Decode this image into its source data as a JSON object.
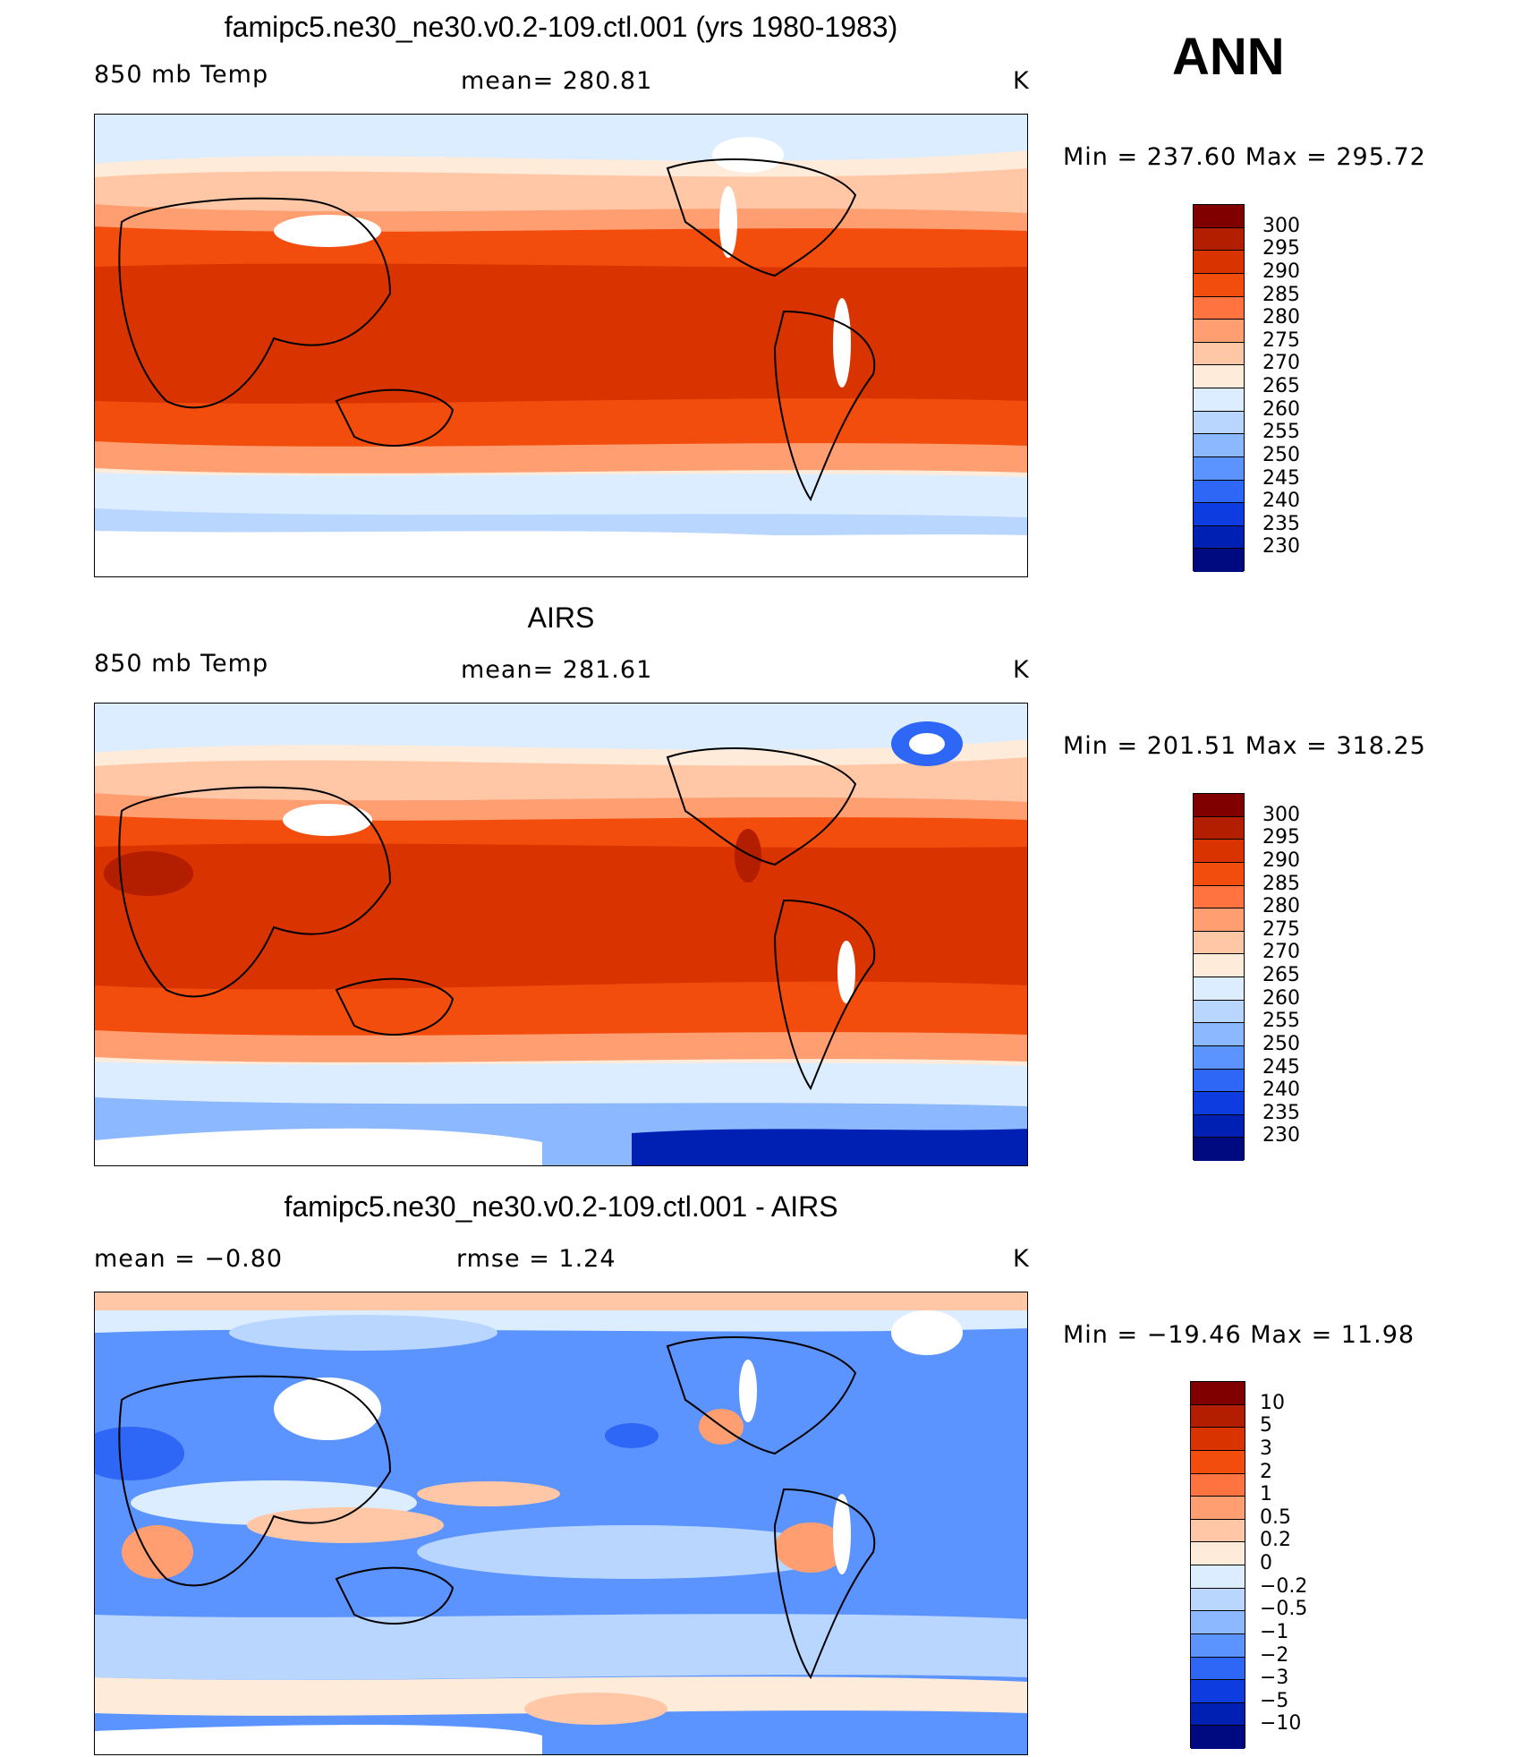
{
  "season": "ANN",
  "panels": [
    {
      "title": "famipc5.ne30_ne30.v0.2-109.ctl.001 (yrs 1980-1983)",
      "left_label": "850 mb Temp",
      "center_label": "mean= 280.81",
      "units": "K",
      "minmax": "Min = 237.60 Max = 295.72",
      "levels": [
        "300",
        "295",
        "290",
        "285",
        "280",
        "275",
        "270",
        "265",
        "260",
        "255",
        "250",
        "245",
        "240",
        "235",
        "230"
      ]
    },
    {
      "title": "AIRS",
      "left_label": "850 mb Temp",
      "center_label": "mean= 281.61",
      "units": "K",
      "minmax": "Min = 201.51 Max = 318.25",
      "levels": [
        "300",
        "295",
        "290",
        "285",
        "280",
        "275",
        "270",
        "265",
        "260",
        "255",
        "250",
        "245",
        "240",
        "235",
        "230"
      ]
    },
    {
      "title": "famipc5.ne30_ne30.v0.2-109.ctl.001 - AIRS",
      "left_label": "mean =  −0.80",
      "center_label": "rmse =   1.24",
      "units": "K",
      "minmax": "Min = −19.46 Max =  11.98",
      "levels": [
        "10",
        "5",
        "3",
        "2",
        "1",
        "0.5",
        "0.2",
        "0",
        "−0.2",
        "−0.5",
        "−1",
        "−2",
        "−3",
        "−5",
        "−10"
      ]
    }
  ],
  "colors": {
    "temp_scale": [
      "#800000",
      "#b31d00",
      "#d93300",
      "#f24d0d",
      "#ff7340",
      "#ff9e70",
      "#ffc7a6",
      "#ffebd9",
      "#dbedff",
      "#b8d6ff",
      "#8cb8ff",
      "#5c94ff",
      "#2e66f5",
      "#0d3de0",
      "#0020b3",
      "#000a80"
    ],
    "diff_scale": [
      "#800000",
      "#b31d00",
      "#d93300",
      "#f24d0d",
      "#ff7340",
      "#ff9e70",
      "#ffc7a6",
      "#ffebd9",
      "#dbedff",
      "#b8d6ff",
      "#8cb8ff",
      "#5c94ff",
      "#2e66f5",
      "#0d3de0",
      "#0020b3",
      "#000a80"
    ]
  }
}
